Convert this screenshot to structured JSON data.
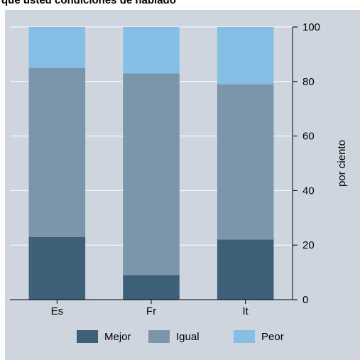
{
  "chart_data": {
    "type": "bar",
    "stacked": true,
    "title": "qué usted condiciones de hablado",
    "categories": [
      "Es",
      "Fr",
      "It"
    ],
    "series": [
      {
        "name": "Mejor",
        "values": [
          23,
          9,
          22
        ],
        "color": "#3d5f78"
      },
      {
        "name": "Igual",
        "values": [
          62,
          74,
          57
        ],
        "color": "#7b95aa"
      },
      {
        "name": "Peor",
        "values": [
          15,
          17,
          21
        ],
        "color": "#86bfe6"
      }
    ],
    "ylabel": "por ciento",
    "ylim": [
      0,
      100
    ],
    "yticks": [
      0,
      20,
      40,
      60,
      80,
      100
    ],
    "yaxis_position": "right",
    "grid": true,
    "legend_position": "bottom",
    "background": "#cdd6df"
  }
}
